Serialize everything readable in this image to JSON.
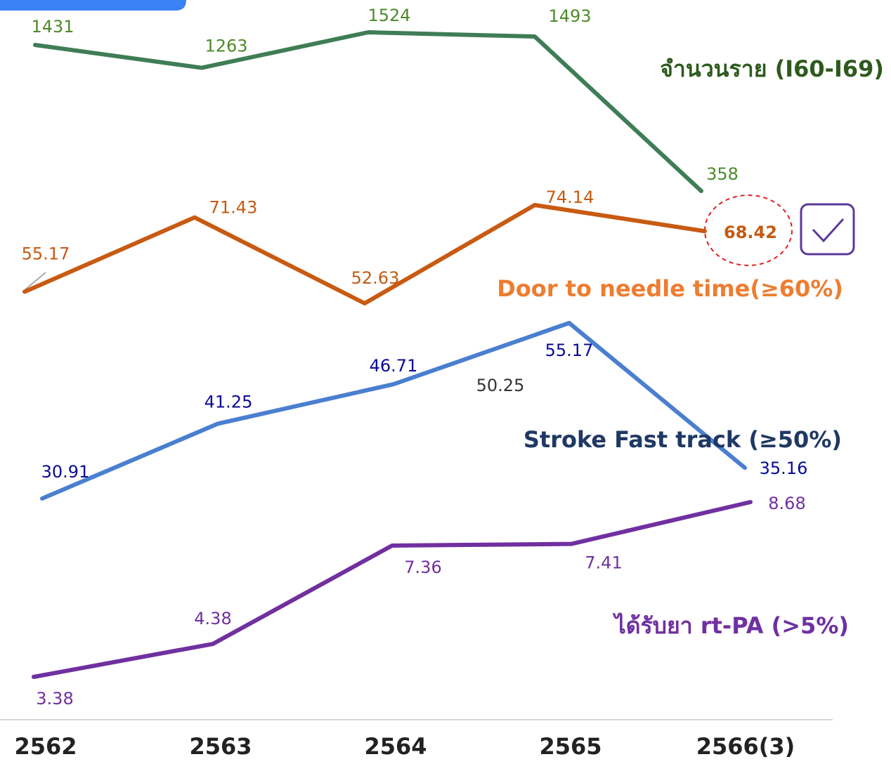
{
  "chart_data": {
    "type": "line",
    "categories": [
      "2562",
      "2563",
      "2564",
      "2565",
      "2566(3)"
    ],
    "series": [
      {
        "name": "จำนวนราย (I60-I69)",
        "color": "#3f7d56",
        "values": [
          1431,
          1263,
          1524,
          1493,
          358
        ]
      },
      {
        "name": "Door to needle time(≥60%)",
        "color": "#c85a12",
        "values": [
          55.17,
          71.43,
          52.63,
          74.14,
          68.42
        ]
      },
      {
        "name": "Stroke Fast track (≥50%)",
        "color": "#4a7fd0",
        "values": [
          30.91,
          41.25,
          46.71,
          55.17,
          35.16
        ]
      },
      {
        "name": "ได้รับยา rt-PA (>5%)",
        "color": "#7030a0",
        "values": [
          3.38,
          4.38,
          7.36,
          7.41,
          8.68
        ]
      }
    ],
    "annotations": [
      "50.25"
    ]
  }
}
